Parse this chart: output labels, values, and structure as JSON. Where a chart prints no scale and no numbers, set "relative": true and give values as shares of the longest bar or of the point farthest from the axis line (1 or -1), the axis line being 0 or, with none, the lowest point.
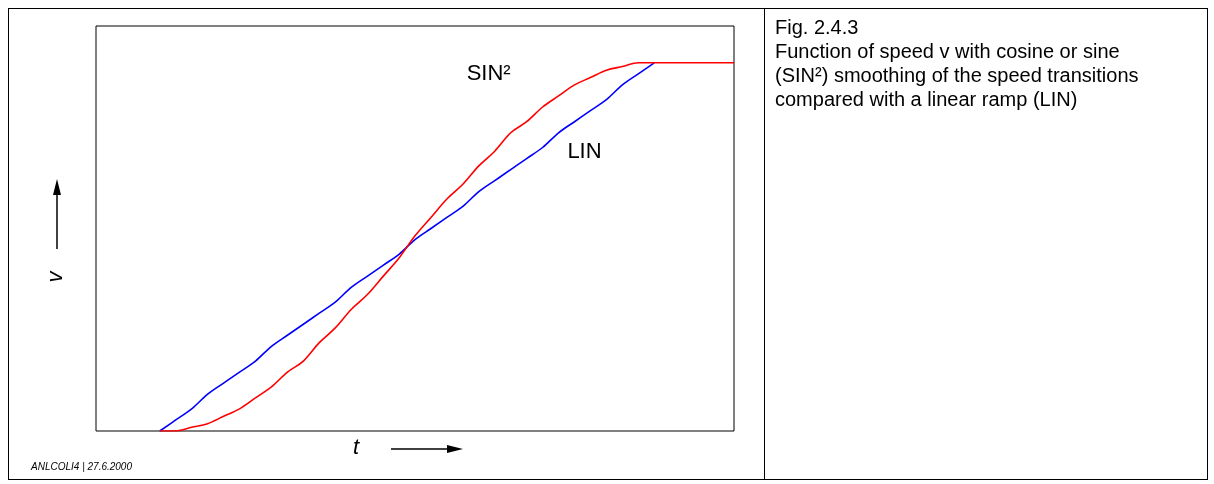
{
  "chart_data": {
    "type": "line",
    "relative": true,
    "title": "Fig. 2.4.3",
    "subtitle": "Function of speed v with cosine or sine (SIN²) smoothing of the speed transitions compared with a linear ramp (LIN)",
    "xlabel": "t",
    "ylabel": "v",
    "annotations": [
      "ANLCOLI4 | 27.6.2000"
    ],
    "categories": [
      null,
      null,
      null,
      null,
      null,
      null,
      null,
      null,
      null,
      null,
      null,
      null,
      null,
      null,
      null,
      null,
      null,
      null,
      null,
      null,
      null,
      null,
      null,
      null,
      null,
      null,
      null,
      null,
      null,
      null,
      null,
      null,
      null,
      null,
      null,
      null,
      null,
      null,
      null,
      null,
      null
    ],
    "series": [
      {
        "name": "SIN²",
        "color": "#ff0000",
        "values": [
          null,
          null,
          null,
          null,
          0,
          0.0,
          0.01,
          0.02,
          0.04,
          0.06,
          0.09,
          0.12,
          0.16,
          0.19,
          0.24,
          0.28,
          0.33,
          0.37,
          0.42,
          0.47,
          0.53,
          0.58,
          0.63,
          0.67,
          0.72,
          0.76,
          0.81,
          0.84,
          0.88,
          0.91,
          0.94,
          0.96,
          0.98,
          0.99,
          1.0,
          1,
          1,
          1,
          1,
          1,
          1
        ]
      },
      {
        "name": "LIN",
        "color": "#0000ff",
        "values": [
          null,
          null,
          null,
          null,
          0,
          0.03,
          0.06,
          0.1,
          0.13,
          0.16,
          0.19,
          0.23,
          0.26,
          0.29,
          0.32,
          0.35,
          0.39,
          0.42,
          0.45,
          0.48,
          0.52,
          0.55,
          0.58,
          0.61,
          0.65,
          0.68,
          0.71,
          0.74,
          0.77,
          0.81,
          0.84,
          0.87,
          0.9,
          0.94,
          0.97,
          1,
          null,
          null,
          null,
          null,
          null
        ]
      }
    ]
  }
}
